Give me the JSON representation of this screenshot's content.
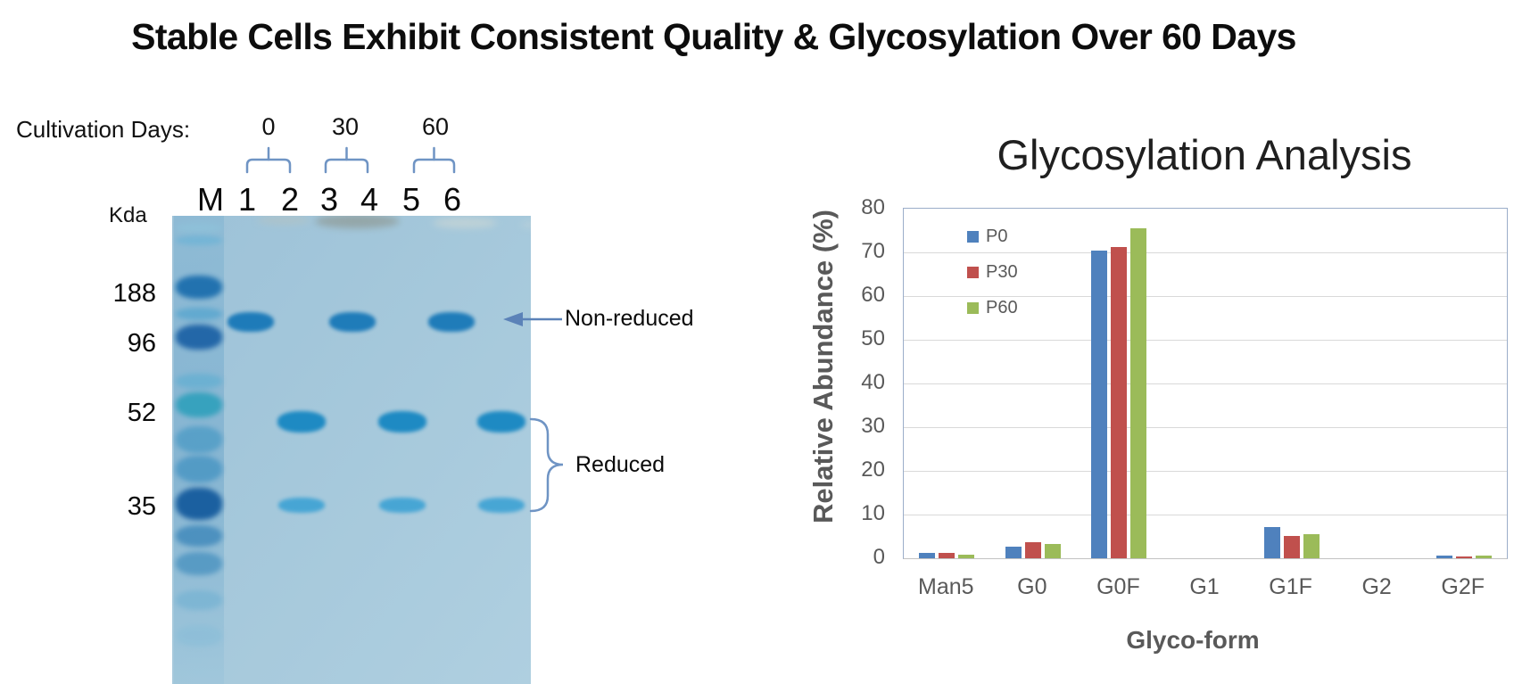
{
  "title": "Stable Cells Exhibit Consistent Quality & Glycosylation Over 60 Days",
  "gel": {
    "cultivation_days_label": "Cultivation Days:",
    "day_groups": [
      {
        "day": "0",
        "lanes": [
          "1",
          "2"
        ]
      },
      {
        "day": "30",
        "lanes": [
          "3",
          "4"
        ]
      },
      {
        "day": "60",
        "lanes": [
          "5",
          "6"
        ]
      }
    ],
    "unit_label": "Kda",
    "mw_markers": [
      "188",
      "96",
      "52",
      "35"
    ],
    "lanes": [
      {
        "label": "M",
        "type": "marker"
      },
      {
        "label": "1",
        "type": "non-reduced"
      },
      {
        "label": "2",
        "type": "reduced"
      },
      {
        "label": "3",
        "type": "non-reduced"
      },
      {
        "label": "4",
        "type": "reduced"
      },
      {
        "label": "5",
        "type": "non-reduced"
      },
      {
        "label": "6",
        "type": "reduced"
      }
    ],
    "annotations": {
      "non_reduced": "Non-reduced",
      "reduced": "Reduced"
    }
  },
  "chart_data": {
    "type": "bar",
    "title": "Glycosylation Analysis",
    "xlabel": "Glyco-form",
    "ylabel": "Relative Abundance (%)",
    "categories": [
      "Man5",
      "G0",
      "G0F",
      "G1",
      "G1F",
      "G2",
      "G2F"
    ],
    "series": [
      {
        "name": "P0",
        "color": "#4F81BD",
        "values": [
          1.2,
          2.7,
          70.5,
          0,
          7.2,
          0,
          0.7
        ]
      },
      {
        "name": "P30",
        "color": "#C0504D",
        "values": [
          1.2,
          3.6,
          71.3,
          0,
          5.1,
          0,
          0.4
        ]
      },
      {
        "name": "P60",
        "color": "#9BBB59",
        "values": [
          0.9,
          3.3,
          75.5,
          0,
          5.6,
          0,
          0.6
        ]
      }
    ],
    "ylim": [
      0,
      80
    ],
    "ytick_step": 10,
    "grid": true,
    "legend_position": "inside-top-left"
  }
}
